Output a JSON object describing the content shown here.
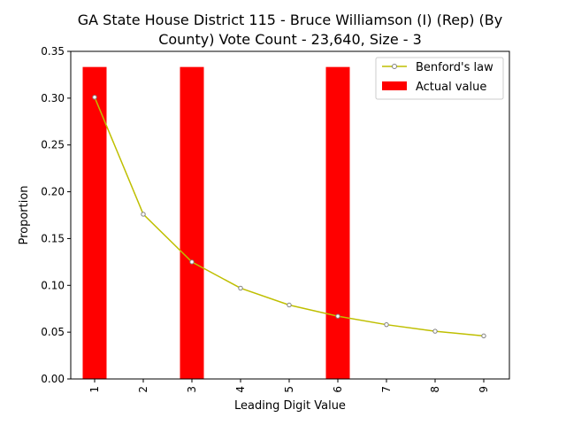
{
  "chart_data": {
    "type": "bar",
    "title": "GA State House District 115 - Bruce Williamson (I) (Rep) (By County) Vote Count - 23,640, Size - 3",
    "title_lines": [
      "GA State House District 115 - Bruce Williamson (I) (Rep) (By",
      "County) Vote Count - 23,640, Size - 3"
    ],
    "xlabel": "Leading Digit Value",
    "ylabel": "Proportion",
    "categories": [
      "1",
      "2",
      "3",
      "4",
      "5",
      "6",
      "7",
      "8",
      "9"
    ],
    "ylim": [
      0,
      0.35
    ],
    "yticks": [
      "0.00",
      "0.05",
      "0.10",
      "0.15",
      "0.20",
      "0.25",
      "0.30",
      "0.35"
    ],
    "series": [
      {
        "name": "Actual value",
        "type": "bar",
        "color": "#ff0000",
        "values": [
          0.3333,
          0,
          0.3333,
          0,
          0,
          0.3333,
          0,
          0,
          0
        ]
      },
      {
        "name": "Benford's law",
        "type": "line",
        "color": "#bfbf00",
        "marker_color": "#808080",
        "values": [
          0.301,
          0.176,
          0.125,
          0.097,
          0.079,
          0.067,
          0.058,
          0.051,
          0.046
        ]
      }
    ],
    "legend_position": "top-right",
    "grid": false
  }
}
